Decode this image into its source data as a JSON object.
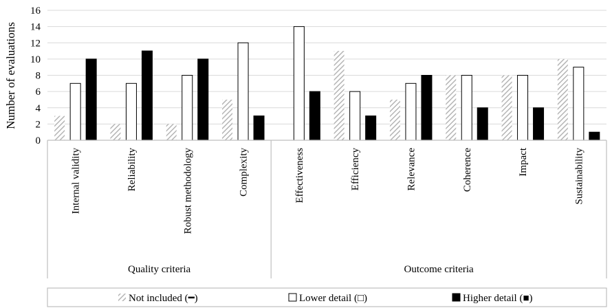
{
  "chart_data": {
    "type": "bar",
    "ylabel": "Number of evaluations",
    "ylim": [
      0,
      16
    ],
    "yticks": [
      0,
      2,
      4,
      6,
      8,
      10,
      12,
      14,
      16
    ],
    "categories": [
      "Internal validity",
      "Reliability",
      "Robust methodology",
      "Complexity",
      "Effectiveness",
      "Efficiency",
      "Relevance",
      "Coherence",
      "Impact",
      "Sustainability"
    ],
    "groups": [
      {
        "label": "Quality criteria",
        "count": 4
      },
      {
        "label": "Outcome criteria",
        "count": 6
      }
    ],
    "series": [
      {
        "name": "Not included (━)",
        "values": [
          3,
          2,
          2,
          5,
          0,
          11,
          5,
          8,
          8,
          10
        ],
        "style": "hatched"
      },
      {
        "name": "Lower detail (□)",
        "values": [
          7,
          7,
          8,
          12,
          14,
          6,
          7,
          8,
          8,
          9
        ],
        "style": "white"
      },
      {
        "name": "Higher detail (■)",
        "values": [
          10,
          11,
          10,
          3,
          6,
          3,
          8,
          4,
          4,
          1
        ],
        "style": "black"
      }
    ],
    "legend_position": "bottom"
  },
  "colors": {
    "hatch": "#b5b5b5",
    "outline": "#000000",
    "higher": "#000000",
    "lower": "#ffffff",
    "axis": "#bfbfbf"
  }
}
